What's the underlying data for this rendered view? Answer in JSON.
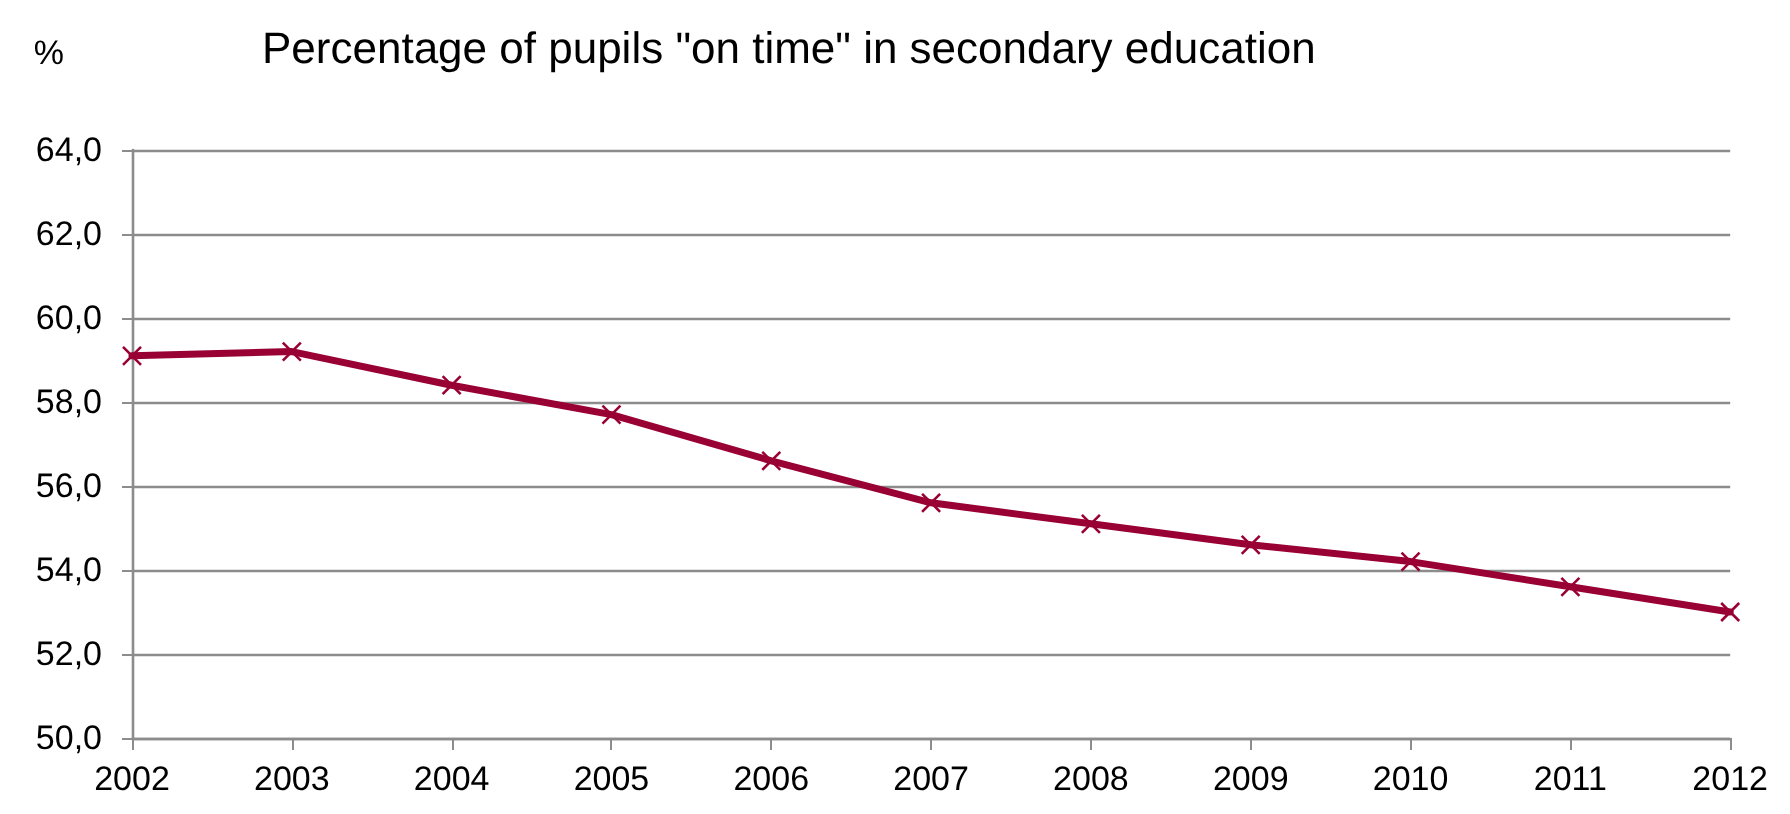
{
  "chart_data": {
    "type": "line",
    "title": "Percentage of pupils \"on time\" in secondary education",
    "ylabel": "%",
    "categories": [
      "2002",
      "2003",
      "2004",
      "2005",
      "2006",
      "2007",
      "2008",
      "2009",
      "2010",
      "2011",
      "2012"
    ],
    "series": [
      {
        "color": "#990033",
        "values": [
          59.1,
          59.2,
          58.4,
          57.7,
          56.6,
          55.6,
          55.1,
          54.6,
          54.2,
          53.6,
          53.0
        ]
      }
    ],
    "ylim": [
      50,
      64
    ],
    "yticks": [
      {
        "value": 50,
        "label": "50,0"
      },
      {
        "value": 52,
        "label": "52,0"
      },
      {
        "value": 54,
        "label": "54,0"
      },
      {
        "value": 56,
        "label": "56,0"
      },
      {
        "value": 58,
        "label": "58,0"
      },
      {
        "value": 60,
        "label": "60,0"
      },
      {
        "value": 62,
        "label": "62,0"
      },
      {
        "value": 64,
        "label": "64,0"
      }
    ],
    "grid": "y",
    "marker": "cross",
    "line_style": "solid"
  }
}
